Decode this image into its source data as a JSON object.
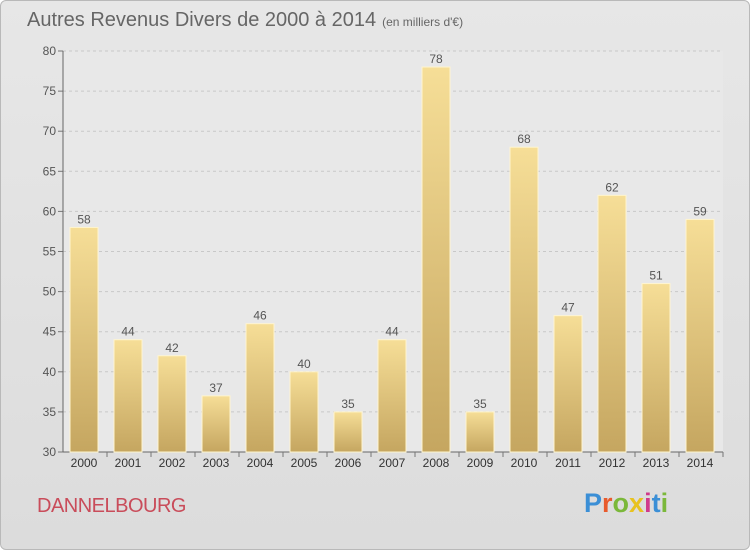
{
  "title": "Autres Revenus Divers de 2000 à 2014",
  "subtitle": "(en milliers d'€)",
  "commune": "DANNELBOURG",
  "logo_text": "Proxiti",
  "colors": {
    "bar_top": "#f6de97",
    "bar_bottom": "#c5a660",
    "text": "#555555",
    "commune": "#c94c5a"
  },
  "chart_data": {
    "type": "bar",
    "title": "Autres Revenus Divers de 2000 à 2014",
    "subtitle": "(en milliers d'€)",
    "categories": [
      "2000",
      "2001",
      "2002",
      "2003",
      "2004",
      "2005",
      "2006",
      "2007",
      "2008",
      "2009",
      "2010",
      "2011",
      "2012",
      "2013",
      "2014"
    ],
    "values": [
      58,
      44,
      42,
      37,
      46,
      40,
      35,
      44,
      78,
      35,
      68,
      47,
      62,
      51,
      59
    ],
    "ylim": [
      30,
      80
    ],
    "yticks": [
      30,
      35,
      40,
      45,
      50,
      55,
      60,
      65,
      70,
      75,
      80
    ],
    "grid": true,
    "data_labels": true
  }
}
